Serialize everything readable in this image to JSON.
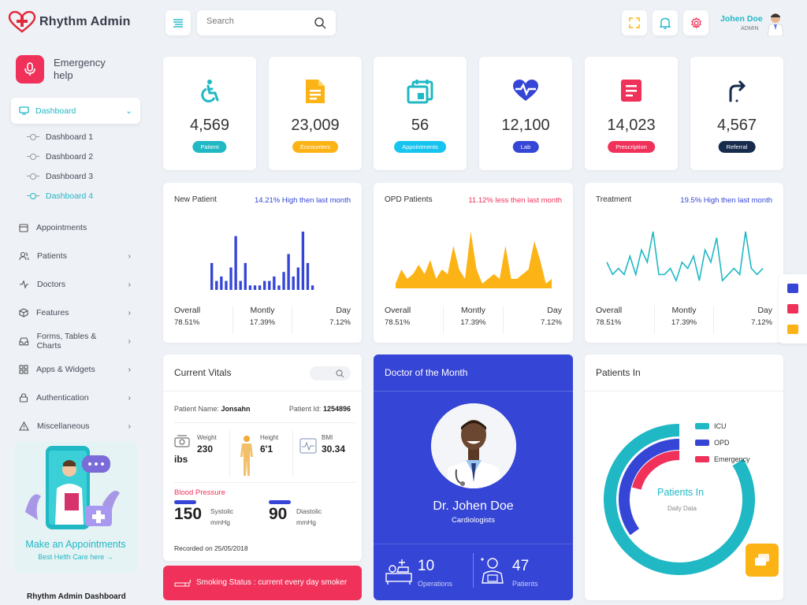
{
  "brand": {
    "name": "Rhythm Admin"
  },
  "header": {
    "search_placeholder": "Search",
    "user_name": "Johen Doe",
    "user_role": "ADMIN"
  },
  "sidebar": {
    "emergency": "Emergency help",
    "dashboard": "Dashboard",
    "sub": [
      "Dashboard 1",
      "Dashboard 2",
      "Dashboard 3",
      "Dashboard 4"
    ],
    "items": [
      "Appointments",
      "Patients",
      "Doctors",
      "Features",
      "Forms, Tables & Charts",
      "Apps & Widgets",
      "Authentication",
      "Miscellaneous"
    ],
    "promo_title": "Make an Appointments",
    "promo_sub": "Best Helth Care here",
    "footer": "Rhythm Admin Dashboard"
  },
  "stats": [
    {
      "value": "4,569",
      "label": "Patient",
      "color": "#1fb8c4"
    },
    {
      "value": "23,009",
      "label": "Encounters",
      "color": "#fcb316"
    },
    {
      "value": "56",
      "label": "Appointments",
      "color": "#17c4f0"
    },
    {
      "value": "12,100",
      "label": "Lab",
      "color": "#3545d6"
    },
    {
      "value": "14,023",
      "label": "Prescription",
      "color": "#f0315a"
    },
    {
      "value": "4,567",
      "label": "Referral",
      "color": "#172b4d"
    }
  ],
  "charts": [
    {
      "title": "New Patient",
      "trend": "14.21% High then last month",
      "trend_color": "#3545d6",
      "overall": "78.51%",
      "monthly": "17.39%",
      "day": "7.12%"
    },
    {
      "title": "OPD Patients",
      "trend": "11.12% less then last month",
      "trend_color": "#f0315a",
      "overall": "78.51%",
      "monthly": "17.39%",
      "day": "7.12%"
    },
    {
      "title": "Treatment",
      "trend": "19.5% High then last month",
      "trend_color": "#3545d6",
      "overall": "78.51%",
      "monthly": "17.39%",
      "day": "7.12%"
    }
  ],
  "labels": {
    "overall": "Overall",
    "monthly": "Montly",
    "day": "Day"
  },
  "chart_data": [
    {
      "type": "bar",
      "values": [
        6,
        2,
        3,
        2,
        5,
        12,
        2,
        6,
        1,
        1,
        1,
        2,
        2,
        3,
        1,
        4,
        8,
        3,
        5,
        13,
        6,
        1
      ],
      "colors": [
        "#3545d6"
      ]
    },
    {
      "type": "area",
      "values": [
        1,
        4,
        2,
        3,
        5,
        3,
        6,
        2,
        4,
        3,
        9,
        4,
        2,
        12,
        4,
        1,
        2,
        3,
        2,
        9,
        2,
        2,
        3,
        4,
        10,
        6,
        1,
        2
      ],
      "colors": [
        "#fcb316"
      ]
    },
    {
      "type": "line",
      "values": [
        4,
        2,
        3,
        2,
        5,
        2,
        6,
        4,
        9,
        2,
        2,
        3,
        1,
        4,
        3,
        5,
        1,
        6,
        4,
        8,
        1,
        2,
        3,
        2,
        9,
        3,
        2,
        3
      ],
      "colors": [
        "#1fb8c4"
      ]
    }
  ],
  "vitals": {
    "title": "Current Vitals",
    "patient_label": "Patient Name:",
    "patient_name": "Jonsahn",
    "id_label": "Patient Id:",
    "patient_id": "1254896",
    "weight_label": "Weight",
    "weight": "230",
    "weight_unit": "ibs",
    "height_label": "Height",
    "height": "6'1",
    "bmi_label": "BMI",
    "bmi": "30.34",
    "bp_label": "Blood Pressure",
    "systolic": "150",
    "systolic_label": "Systolic",
    "systolic_unit": "mmHg",
    "diastolic": "90",
    "diastolic_label": "Diastolic",
    "diastolic_unit": "mmHg",
    "recorded": "Recorded on 25/05/2018",
    "smoking": "Smoking Status : current every day smoker"
  },
  "doctor": {
    "title": "Doctor of the Month",
    "name": "Dr. Johen Doe",
    "specialty": "Cardiologists",
    "operations": "10",
    "operations_label": "Operations",
    "patients": "47",
    "patients_label": "Patients"
  },
  "patients_in": {
    "title": "Patients In",
    "center": "Patients In",
    "sub": "Daily Data",
    "legend": [
      "ICU",
      "OPD",
      "Emergency"
    ],
    "values": [
      60,
      25,
      15
    ],
    "colors": [
      "#1fb8c4",
      "#3545d6",
      "#f0315a"
    ]
  }
}
